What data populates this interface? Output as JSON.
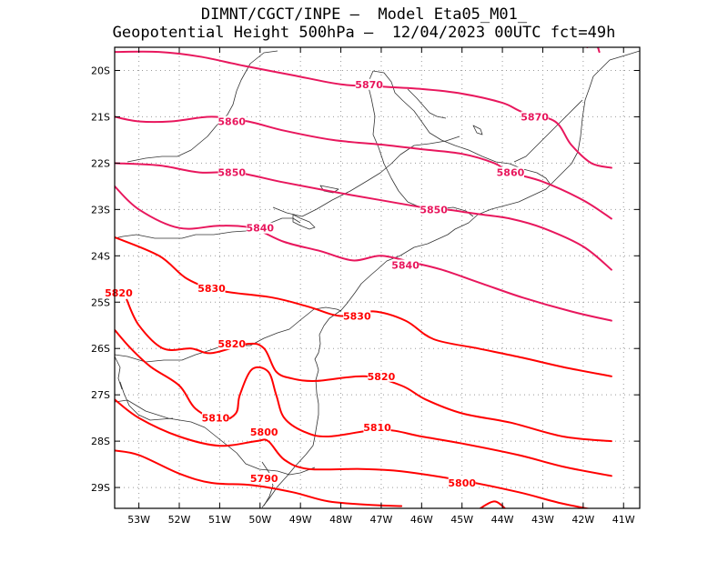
{
  "title": {
    "line1": "DIMNT/CGCT/INPE –  Model Eta05_M01_",
    "line2": "Geopotential Height 500hPa –  12/04/2023 00UTC fct=49h"
  },
  "axes": {
    "lon_labels": [
      "53W",
      "52W",
      "51W",
      "50W",
      "49W",
      "48W",
      "47W",
      "46W",
      "45W",
      "44W",
      "43W",
      "42W",
      "41W"
    ],
    "lat_labels": [
      "20S",
      "21S",
      "22S",
      "23S",
      "24S",
      "25S",
      "26S",
      "27S",
      "28S",
      "29S"
    ]
  },
  "colors": {
    "high": "#e8175d",
    "low": "#ff0000",
    "coast": "#333333",
    "grid": "#999999"
  },
  "contour_labels": [
    {
      "text": "5870",
      "lon": -47.3,
      "lat": -20.3
    },
    {
      "text": "5870",
      "lon": -43.2,
      "lat": -21.0
    },
    {
      "text": "5860",
      "lon": -50.7,
      "lat": -21.1
    },
    {
      "text": "5860",
      "lon": -43.8,
      "lat": -22.2
    },
    {
      "text": "5850",
      "lon": -50.7,
      "lat": -22.2
    },
    {
      "text": "5850",
      "lon": -45.7,
      "lat": -23.0
    },
    {
      "text": "5840",
      "lon": -50.0,
      "lat": -23.4
    },
    {
      "text": "5840",
      "lon": -46.4,
      "lat": -24.2
    },
    {
      "text": "5830",
      "lon": -51.2,
      "lat": -24.7
    },
    {
      "text": "5830",
      "lon": -47.6,
      "lat": -25.3
    },
    {
      "text": "5820",
      "lon": -53.5,
      "lat": -24.8
    },
    {
      "text": "5820",
      "lon": -50.7,
      "lat": -25.9
    },
    {
      "text": "5820",
      "lon": -47.0,
      "lat": -26.6
    },
    {
      "text": "5810",
      "lon": -51.1,
      "lat": -27.5
    },
    {
      "text": "5810",
      "lon": -47.1,
      "lat": -27.7
    },
    {
      "text": "5800",
      "lon": -49.9,
      "lat": -27.8
    },
    {
      "text": "5800",
      "lon": -45.0,
      "lat": -28.9
    },
    {
      "text": "5790",
      "lon": -49.9,
      "lat": -28.8
    }
  ],
  "contours": [
    {
      "value": 5870,
      "points": [
        [
          -53.6,
          -19.6
        ],
        [
          -52.5,
          -19.6
        ],
        [
          -51.5,
          -19.7
        ],
        [
          -50.4,
          -19.9
        ],
        [
          -49.2,
          -20.1
        ],
        [
          -48.0,
          -20.3
        ],
        [
          -47.0,
          -20.35
        ],
        [
          -46.0,
          -20.4
        ],
        [
          -45.0,
          -20.5
        ],
        [
          -44.0,
          -20.7
        ],
        [
          -43.5,
          -20.9
        ],
        [
          -42.7,
          -21.1
        ],
        [
          -42.3,
          -21.6
        ],
        [
          -41.8,
          -22.0
        ],
        [
          -41.3,
          -22.1
        ]
      ]
    },
    {
      "value": 5870,
      "points": [
        [
          -41.9,
          -19.5
        ],
        [
          -41.7,
          -19.4
        ],
        [
          -41.6,
          -19.6
        ]
      ]
    },
    {
      "value": 5860,
      "points": [
        [
          -53.6,
          -21.0
        ],
        [
          -53.0,
          -21.1
        ],
        [
          -52.2,
          -21.1
        ],
        [
          -51.2,
          -21.0
        ],
        [
          -50.3,
          -21.1
        ],
        [
          -49.4,
          -21.3
        ],
        [
          -48.2,
          -21.5
        ],
        [
          -47.0,
          -21.6
        ],
        [
          -46.0,
          -21.7
        ],
        [
          -45.0,
          -21.8
        ],
        [
          -44.2,
          -22.0
        ],
        [
          -43.8,
          -22.2
        ],
        [
          -43.0,
          -22.4
        ],
        [
          -42.0,
          -22.8
        ],
        [
          -41.3,
          -23.2
        ]
      ]
    },
    {
      "value": 5850,
      "points": [
        [
          -53.6,
          -22.0
        ],
        [
          -52.5,
          -22.05
        ],
        [
          -51.5,
          -22.2
        ],
        [
          -50.6,
          -22.2
        ],
        [
          -49.5,
          -22.4
        ],
        [
          -48.3,
          -22.6
        ],
        [
          -47.0,
          -22.8
        ],
        [
          -46.0,
          -22.95
        ],
        [
          -45.4,
          -23.0
        ],
        [
          -44.6,
          -23.1
        ],
        [
          -43.8,
          -23.2
        ],
        [
          -43.0,
          -23.4
        ],
        [
          -42.0,
          -23.8
        ],
        [
          -41.3,
          -24.3
        ]
      ]
    },
    {
      "value": 5840,
      "points": [
        [
          -53.6,
          -22.5
        ],
        [
          -53.0,
          -23.0
        ],
        [
          -52.0,
          -23.4
        ],
        [
          -51.0,
          -23.35
        ],
        [
          -50.2,
          -23.4
        ],
        [
          -49.4,
          -23.7
        ],
        [
          -48.5,
          -23.9
        ],
        [
          -47.7,
          -24.1
        ],
        [
          -47.0,
          -24.0
        ],
        [
          -46.2,
          -24.15
        ],
        [
          -45.5,
          -24.3
        ],
        [
          -44.5,
          -24.6
        ],
        [
          -43.5,
          -24.9
        ],
        [
          -42.3,
          -25.2
        ],
        [
          -41.3,
          -25.4
        ]
      ]
    },
    {
      "value": 5830,
      "points": [
        [
          -53.6,
          -23.6
        ],
        [
          -52.5,
          -24.0
        ],
        [
          -51.8,
          -24.5
        ],
        [
          -51.0,
          -24.75
        ],
        [
          -49.7,
          -24.9
        ],
        [
          -48.8,
          -25.1
        ],
        [
          -48.0,
          -25.3
        ],
        [
          -47.2,
          -25.2
        ],
        [
          -46.4,
          -25.4
        ],
        [
          -45.7,
          -25.8
        ],
        [
          -44.6,
          -26.0
        ],
        [
          -43.5,
          -26.2
        ],
        [
          -42.5,
          -26.4
        ],
        [
          -41.3,
          -26.6
        ]
      ]
    },
    {
      "value": 5820,
      "points": [
        [
          -53.3,
          -24.95
        ],
        [
          -53.0,
          -25.5
        ],
        [
          -52.4,
          -26.0
        ],
        [
          -51.7,
          -26.0
        ],
        [
          -51.2,
          -26.1
        ],
        [
          -50.3,
          -25.9
        ],
        [
          -49.9,
          -26.0
        ],
        [
          -49.6,
          -26.5
        ],
        [
          -49.2,
          -26.65
        ],
        [
          -48.6,
          -26.7
        ],
        [
          -47.4,
          -26.6
        ],
        [
          -46.5,
          -26.8
        ],
        [
          -45.9,
          -27.1
        ],
        [
          -45.0,
          -27.4
        ],
        [
          -43.8,
          -27.6
        ],
        [
          -42.5,
          -27.9
        ],
        [
          -41.3,
          -28.0
        ]
      ]
    },
    {
      "value": 5810,
      "points": [
        [
          -53.6,
          -25.6
        ],
        [
          -53.2,
          -26.0
        ],
        [
          -52.7,
          -26.4
        ],
        [
          -52.0,
          -26.8
        ],
        [
          -51.6,
          -27.3
        ],
        [
          -51.0,
          -27.55
        ],
        [
          -50.6,
          -27.4
        ],
        [
          -50.5,
          -27.0
        ],
        [
          -50.2,
          -26.45
        ],
        [
          -49.8,
          -26.5
        ],
        [
          -49.6,
          -27.0
        ],
        [
          -49.4,
          -27.5
        ],
        [
          -48.9,
          -27.8
        ],
        [
          -48.3,
          -27.9
        ],
        [
          -47.0,
          -27.75
        ],
        [
          -46.0,
          -27.9
        ],
        [
          -45.0,
          -28.05
        ],
        [
          -43.6,
          -28.3
        ],
        [
          -42.5,
          -28.55
        ],
        [
          -41.3,
          -28.75
        ]
      ]
    },
    {
      "value": 5800,
      "points": [
        [
          -53.6,
          -27.1
        ],
        [
          -53.0,
          -27.5
        ],
        [
          -52.0,
          -27.9
        ],
        [
          -51.0,
          -28.1
        ],
        [
          -50.1,
          -28.0
        ],
        [
          -49.8,
          -28.0
        ],
        [
          -49.4,
          -28.4
        ],
        [
          -48.8,
          -28.6
        ],
        [
          -47.5,
          -28.6
        ],
        [
          -46.5,
          -28.65
        ],
        [
          -45.0,
          -28.85
        ],
        [
          -43.6,
          -29.1
        ],
        [
          -42.5,
          -29.35
        ],
        [
          -41.3,
          -29.55
        ]
      ]
    },
    {
      "value": 5790,
      "points": [
        [
          -53.6,
          -28.2
        ],
        [
          -53.0,
          -28.3
        ],
        [
          -52.0,
          -28.7
        ],
        [
          -51.2,
          -28.9
        ],
        [
          -50.2,
          -28.95
        ],
        [
          -49.2,
          -29.1
        ],
        [
          -48.3,
          -29.3
        ],
        [
          -47.2,
          -29.38
        ],
        [
          -46.5,
          -29.4
        ]
      ]
    },
    {
      "value": 5790,
      "points": [
        [
          -44.6,
          -29.48
        ],
        [
          -44.2,
          -29.3
        ],
        [
          -43.9,
          -29.48
        ]
      ]
    }
  ]
}
